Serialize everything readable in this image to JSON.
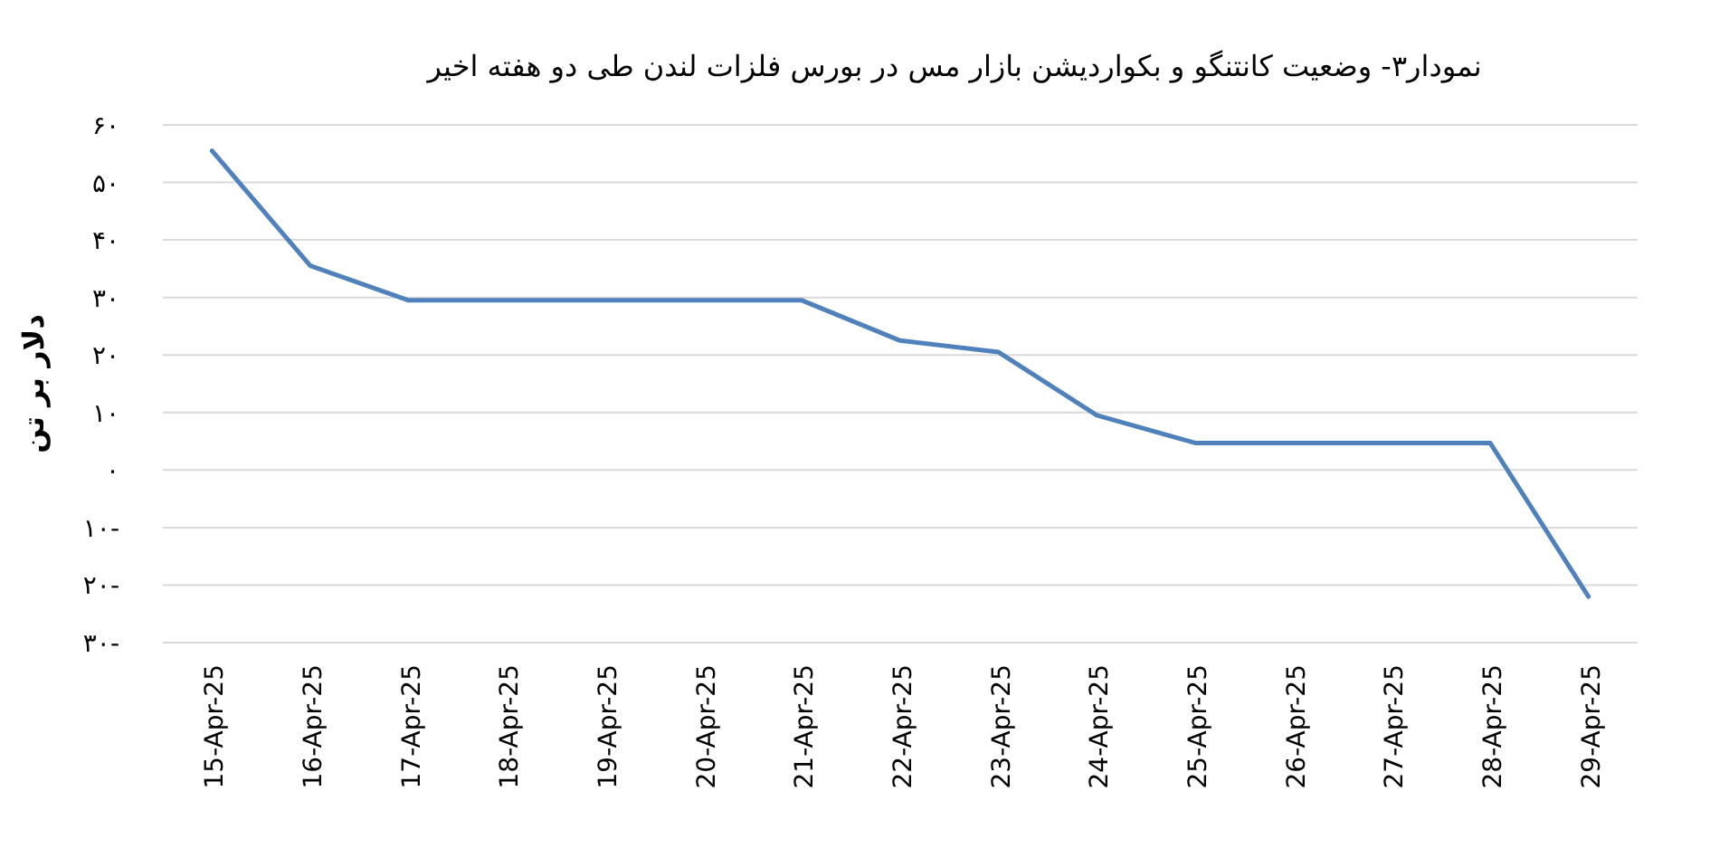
{
  "chart_data": {
    "type": "line",
    "title": "نمودار۳- وضعیت کانتنگو و بکواردیشن بازار مس در بورس فلزات لندن طی دو هفته اخیر",
    "ylabel": "دلار بر تن",
    "categories": [
      "15-Apr-25",
      "16-Apr-25",
      "17-Apr-25",
      "18-Apr-25",
      "19-Apr-25",
      "20-Apr-25",
      "21-Apr-25",
      "22-Apr-25",
      "23-Apr-25",
      "24-Apr-25",
      "25-Apr-25",
      "26-Apr-25",
      "27-Apr-25",
      "28-Apr-25",
      "29-Apr-25"
    ],
    "series": [
      {
        "color": "#4f81bd",
        "values": [
          55.5,
          35.5,
          29.5,
          29.5,
          29.5,
          29.5,
          29.5,
          22.5,
          20.5,
          9.5,
          4.7,
          4.7,
          4.7,
          4.7,
          -22
        ]
      }
    ],
    "ylim": [
      -30,
      60
    ],
    "yticks": [
      {
        "value": 60,
        "label": "۶۰"
      },
      {
        "value": 50,
        "label": "۵۰"
      },
      {
        "value": 40,
        "label": "۴۰"
      },
      {
        "value": 30,
        "label": "۳۰"
      },
      {
        "value": 20,
        "label": "۲۰"
      },
      {
        "value": 10,
        "label": "۱۰"
      },
      {
        "value": 0,
        "label": "۰"
      },
      {
        "value": -10,
        "label": "۱۰-"
      },
      {
        "value": -20,
        "label": "۲۰-"
      },
      {
        "value": -30,
        "label": "۳۰-"
      }
    ],
    "grid": "y",
    "marker": "none",
    "line_style": "solid"
  }
}
